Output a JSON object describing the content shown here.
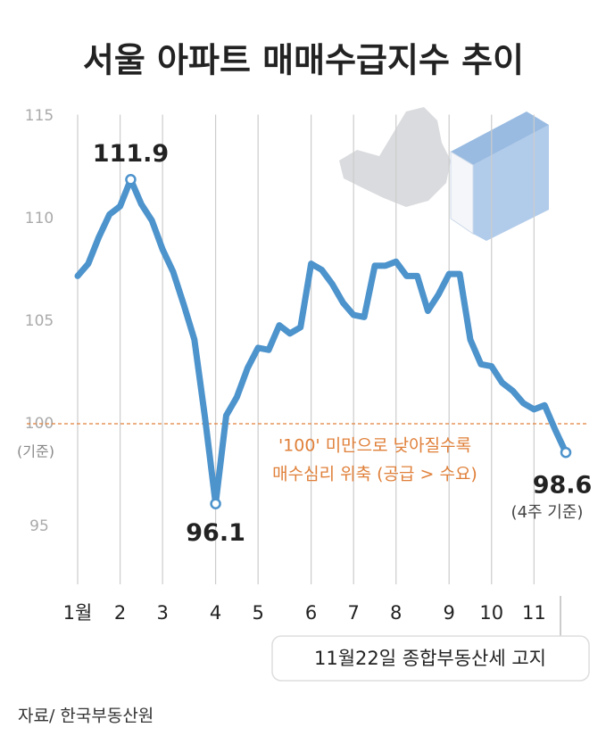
{
  "chart_data": {
    "type": "line",
    "title": "서울 아파트 매매수급지수 추이",
    "x": [
      1,
      2,
      3,
      4,
      5,
      6,
      7,
      8,
      9,
      10,
      11,
      12,
      13,
      14,
      15,
      16,
      17,
      18,
      19,
      20,
      21,
      22,
      23,
      24,
      25,
      26,
      27,
      28,
      29,
      30,
      31,
      32,
      33,
      34,
      35,
      36,
      37,
      38,
      39,
      40,
      41,
      42,
      43,
      44,
      45,
      46,
      47
    ],
    "series": [
      {
        "color": "#4d93cc",
        "values": [
          107.2,
          107.8,
          109.1,
          110.2,
          110.6,
          111.9,
          110.7,
          109.9,
          108.5,
          107.4,
          105.8,
          104.1,
          100.3,
          96.1,
          100.4,
          101.3,
          102.7,
          103.7,
          103.6,
          104.8,
          104.4,
          104.7,
          107.8,
          107.5,
          106.8,
          105.9,
          105.3,
          105.2,
          107.7,
          107.7,
          107.9,
          107.2,
          107.2,
          105.5,
          106.3,
          107.3,
          107.3,
          104.1,
          102.9,
          102.8,
          102.0,
          101.6,
          101.0,
          100.7,
          100.9,
          99.7,
          98.6
        ]
      }
    ],
    "xlim": [
      1,
      47
    ],
    "xticks": [
      {
        "value": 1,
        "label": "1월"
      },
      {
        "value": 5,
        "label": "2"
      },
      {
        "value": 9,
        "label": "3"
      },
      {
        "value": 14,
        "label": "4"
      },
      {
        "value": 18,
        "label": "5"
      },
      {
        "value": 23,
        "label": "6"
      },
      {
        "value": 27,
        "label": "7"
      },
      {
        "value": 31,
        "label": "8"
      },
      {
        "value": 36,
        "label": "9"
      },
      {
        "value": 40,
        "label": "10"
      },
      {
        "value": 44,
        "label": "11"
      }
    ],
    "ylim": [
      92.5,
      115.5
    ],
    "yticks": [
      95,
      100,
      105,
      110,
      115
    ],
    "grid": true,
    "reference_line": 100,
    "reference_color": "#e0803a",
    "baseline_label": "(기준)",
    "annotations": [
      "'100' 미만으로 낮아질수록",
      "매수심리 위축 (공급 > 수요)"
    ],
    "last_point_note": "(4주 기준)",
    "callout": "11월22일 종합부동산세 고지",
    "source": "자료/ 한국부동산원"
  }
}
